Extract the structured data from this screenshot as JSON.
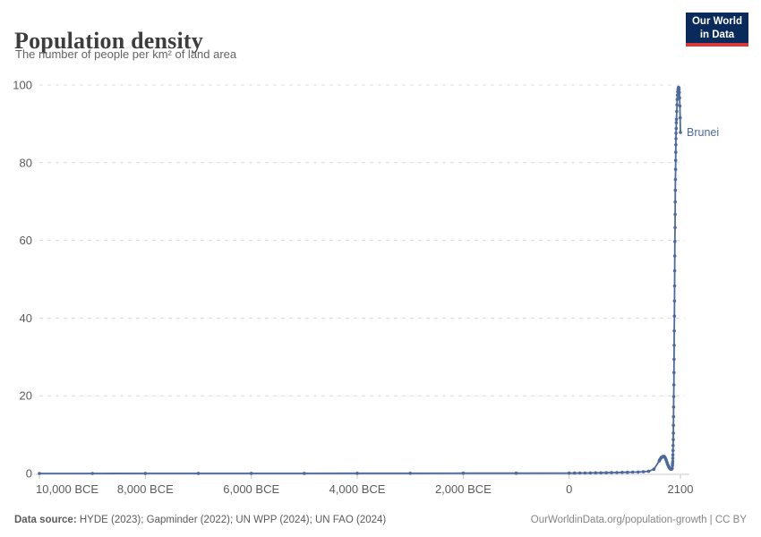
{
  "header": {
    "title": "Population density",
    "subtitle": "The number of people per km² of land area"
  },
  "logo": {
    "line1": "Our World",
    "line2": "in Data"
  },
  "footer": {
    "source_label": "Data source:",
    "sources": " HYDE (2023); Gapminder (2022); UN WPP (2024); UN FAO (2024)",
    "credit": "OurWorldinData.org/population-growth | CC BY"
  },
  "colors": {
    "series_blue": "#4C6A9C",
    "gridline": "#dcdcdc",
    "axis": "#c8c8c8",
    "tick_label": "#5b5b5b"
  },
  "chart_data": {
    "type": "line",
    "title": "Population density",
    "ylabel": "people per km² of land area",
    "xlim": [
      -10000,
      2100
    ],
    "ylim": [
      0,
      100
    ],
    "grid": "horizontal dashed",
    "legend_position": "end-of-line label",
    "yticks": [
      0,
      20,
      40,
      60,
      80,
      100
    ],
    "xticks": [
      {
        "value": -10000,
        "label": "10,000 BCE",
        "align": "start"
      },
      {
        "value": -8000,
        "label": "8,000 BCE",
        "align": "middle"
      },
      {
        "value": -6000,
        "label": "6,000 BCE",
        "align": "middle"
      },
      {
        "value": -4000,
        "label": "4,000 BCE",
        "align": "middle"
      },
      {
        "value": -2000,
        "label": "2,000 BCE",
        "align": "middle"
      },
      {
        "value": 0,
        "label": "0",
        "align": "middle"
      },
      {
        "value": 2100,
        "label": "2100",
        "align": "middle"
      }
    ],
    "series": [
      {
        "name": "Brunei",
        "color": "#4C6A9C",
        "points": [
          [
            -10000,
            0.01
          ],
          [
            -9000,
            0.01
          ],
          [
            -8000,
            0.02
          ],
          [
            -7000,
            0.02
          ],
          [
            -6000,
            0.03
          ],
          [
            -5000,
            0.03
          ],
          [
            -4000,
            0.04
          ],
          [
            -3000,
            0.05
          ],
          [
            -2000,
            0.06
          ],
          [
            -1000,
            0.07
          ],
          [
            0,
            0.09
          ],
          [
            100,
            0.1
          ],
          [
            200,
            0.11
          ],
          [
            300,
            0.12
          ],
          [
            400,
            0.14
          ],
          [
            500,
            0.15
          ],
          [
            600,
            0.17
          ],
          [
            700,
            0.19
          ],
          [
            800,
            0.21
          ],
          [
            900,
            0.24
          ],
          [
            1000,
            0.27
          ],
          [
            1100,
            0.3
          ],
          [
            1200,
            0.34
          ],
          [
            1300,
            0.38
          ],
          [
            1400,
            0.43
          ],
          [
            1500,
            0.55
          ],
          [
            1600,
            1.1
          ],
          [
            1700,
            3.2
          ],
          [
            1710,
            3.5
          ],
          [
            1720,
            3.7
          ],
          [
            1730,
            3.9
          ],
          [
            1740,
            4.1
          ],
          [
            1750,
            4.2
          ],
          [
            1760,
            4.3
          ],
          [
            1770,
            4.35
          ],
          [
            1780,
            4.4
          ],
          [
            1790,
            4.4
          ],
          [
            1800,
            4.3
          ],
          [
            1810,
            4.1
          ],
          [
            1820,
            3.8
          ],
          [
            1830,
            3.5
          ],
          [
            1840,
            3.1
          ],
          [
            1850,
            2.7
          ],
          [
            1860,
            2.3
          ],
          [
            1870,
            2.0
          ],
          [
            1880,
            1.7
          ],
          [
            1890,
            1.5
          ],
          [
            1900,
            1.3
          ],
          [
            1910,
            1.2
          ],
          [
            1920,
            1.1
          ],
          [
            1930,
            1.1
          ],
          [
            1940,
            1.2
          ],
          [
            1945,
            1.3
          ],
          [
            1950,
            2.0
          ],
          [
            1952,
            2.5
          ],
          [
            1954,
            3.1
          ],
          [
            1956,
            3.9
          ],
          [
            1958,
            4.8
          ],
          [
            1960,
            5.9
          ],
          [
            1962,
            7.2
          ],
          [
            1964,
            8.7
          ],
          [
            1966,
            10.4
          ],
          [
            1968,
            12.4
          ],
          [
            1970,
            14.6
          ],
          [
            1972,
            17.1
          ],
          [
            1974,
            19.8
          ],
          [
            1976,
            22.8
          ],
          [
            1978,
            26.0
          ],
          [
            1980,
            29.4
          ],
          [
            1982,
            33.0
          ],
          [
            1984,
            36.7
          ],
          [
            1986,
            40.5
          ],
          [
            1988,
            44.4
          ],
          [
            1990,
            48.3
          ],
          [
            1992,
            52.2
          ],
          [
            1994,
            56.0
          ],
          [
            1996,
            59.7
          ],
          [
            1998,
            63.3
          ],
          [
            2000,
            66.7
          ],
          [
            2002,
            69.9
          ],
          [
            2004,
            72.9
          ],
          [
            2006,
            75.7
          ],
          [
            2008,
            78.3
          ],
          [
            2010,
            80.6
          ],
          [
            2012,
            82.7
          ],
          [
            2014,
            84.6
          ],
          [
            2016,
            86.2
          ],
          [
            2018,
            87.6
          ],
          [
            2020,
            88.8
          ],
          [
            2023,
            90.3
          ],
          [
            2025,
            91.2
          ],
          [
            2030,
            93.2
          ],
          [
            2035,
            94.9
          ],
          [
            2040,
            96.3
          ],
          [
            2045,
            97.4
          ],
          [
            2050,
            98.2
          ],
          [
            2055,
            98.8
          ],
          [
            2060,
            99.2
          ],
          [
            2065,
            99.4
          ],
          [
            2070,
            99.3
          ],
          [
            2075,
            98.9
          ],
          [
            2080,
            98.1
          ],
          [
            2085,
            96.7
          ],
          [
            2090,
            94.6
          ],
          [
            2095,
            91.6
          ],
          [
            2100,
            87.8
          ]
        ]
      }
    ]
  }
}
